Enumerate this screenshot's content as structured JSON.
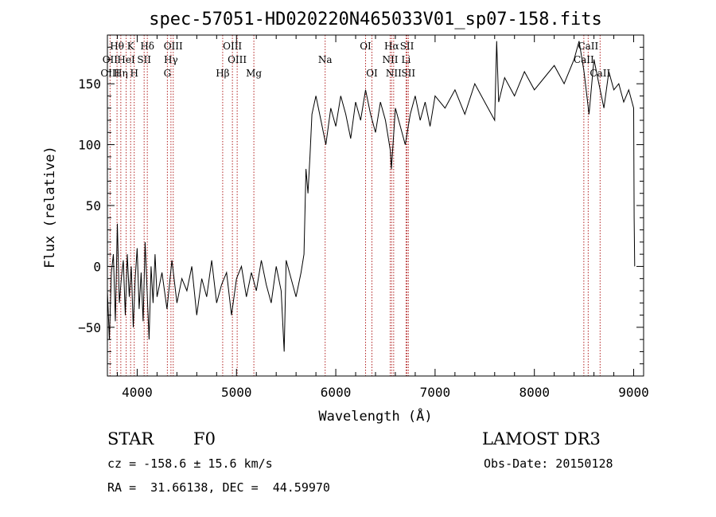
{
  "chart_data": {
    "type": "line",
    "title": "spec-57051-HD020220N465033V01_sp07-158.fits",
    "xlabel": "Wavelength (Å)",
    "ylabel": "Flux (relative)",
    "xlim": [
      3700,
      9100
    ],
    "ylim": [
      -90,
      190
    ],
    "xticks": [
      4000,
      5000,
      6000,
      7000,
      8000,
      9000
    ],
    "yticks": [
      -50,
      0,
      50,
      100,
      150
    ],
    "series": [
      {
        "name": "flux",
        "points": [
          [
            3700,
            -20
          ],
          [
            3720,
            -60
          ],
          [
            3740,
            -5
          ],
          [
            3760,
            10
          ],
          [
            3780,
            -45
          ],
          [
            3800,
            35
          ],
          [
            3820,
            -30
          ],
          [
            3840,
            -10
          ],
          [
            3860,
            5
          ],
          [
            3880,
            -40
          ],
          [
            3900,
            10
          ],
          [
            3920,
            -25
          ],
          [
            3940,
            0
          ],
          [
            3960,
            -50
          ],
          [
            3980,
            -10
          ],
          [
            4000,
            15
          ],
          [
            4020,
            -35
          ],
          [
            4040,
            -5
          ],
          [
            4060,
            -45
          ],
          [
            4080,
            20
          ],
          [
            4100,
            -20
          ],
          [
            4120,
            -60
          ],
          [
            4140,
            0
          ],
          [
            4160,
            -30
          ],
          [
            4180,
            10
          ],
          [
            4200,
            -25
          ],
          [
            4250,
            -5
          ],
          [
            4300,
            -35
          ],
          [
            4350,
            5
          ],
          [
            4400,
            -30
          ],
          [
            4450,
            -10
          ],
          [
            4500,
            -20
          ],
          [
            4550,
            0
          ],
          [
            4600,
            -40
          ],
          [
            4650,
            -10
          ],
          [
            4700,
            -25
          ],
          [
            4750,
            5
          ],
          [
            4800,
            -30
          ],
          [
            4850,
            -15
          ],
          [
            4900,
            -5
          ],
          [
            4950,
            -40
          ],
          [
            5000,
            -10
          ],
          [
            5050,
            0
          ],
          [
            5100,
            -25
          ],
          [
            5150,
            -5
          ],
          [
            5200,
            -20
          ],
          [
            5250,
            5
          ],
          [
            5300,
            -15
          ],
          [
            5350,
            -30
          ],
          [
            5400,
            0
          ],
          [
            5450,
            -20
          ],
          [
            5480,
            -70
          ],
          [
            5500,
            5
          ],
          [
            5550,
            -10
          ],
          [
            5600,
            -25
          ],
          [
            5650,
            -5
          ],
          [
            5680,
            10
          ],
          [
            5700,
            80
          ],
          [
            5720,
            60
          ],
          [
            5740,
            90
          ],
          [
            5760,
            125
          ],
          [
            5800,
            140
          ],
          [
            5850,
            120
          ],
          [
            5900,
            100
          ],
          [
            5950,
            130
          ],
          [
            6000,
            115
          ],
          [
            6050,
            140
          ],
          [
            6100,
            125
          ],
          [
            6150,
            105
          ],
          [
            6200,
            135
          ],
          [
            6250,
            120
          ],
          [
            6300,
            145
          ],
          [
            6350,
            125
          ],
          [
            6400,
            110
          ],
          [
            6450,
            135
          ],
          [
            6500,
            120
          ],
          [
            6550,
            95
          ],
          [
            6560,
            80
          ],
          [
            6600,
            130
          ],
          [
            6650,
            115
          ],
          [
            6700,
            100
          ],
          [
            6750,
            125
          ],
          [
            6800,
            140
          ],
          [
            6850,
            120
          ],
          [
            6900,
            135
          ],
          [
            6950,
            115
          ],
          [
            7000,
            140
          ],
          [
            7100,
            130
          ],
          [
            7200,
            145
          ],
          [
            7300,
            125
          ],
          [
            7400,
            150
          ],
          [
            7500,
            135
          ],
          [
            7600,
            120
          ],
          [
            7620,
            185
          ],
          [
            7640,
            135
          ],
          [
            7700,
            155
          ],
          [
            7800,
            140
          ],
          [
            7900,
            160
          ],
          [
            8000,
            145
          ],
          [
            8100,
            155
          ],
          [
            8200,
            165
          ],
          [
            8300,
            150
          ],
          [
            8400,
            170
          ],
          [
            8450,
            185
          ],
          [
            8500,
            160
          ],
          [
            8550,
            125
          ],
          [
            8600,
            170
          ],
          [
            8650,
            150
          ],
          [
            8700,
            130
          ],
          [
            8750,
            160
          ],
          [
            8800,
            145
          ],
          [
            8850,
            150
          ],
          [
            8900,
            135
          ],
          [
            8950,
            145
          ],
          [
            9000,
            130
          ],
          [
            9005,
            40
          ],
          [
            9010,
            0
          ]
        ]
      }
    ],
    "annotations": [
      {
        "label": "Hθ",
        "x": 3797,
        "row": 1
      },
      {
        "label": "K",
        "x": 3934,
        "row": 1
      },
      {
        "label": "Hδ",
        "x": 4102,
        "row": 1
      },
      {
        "label": "OIII",
        "x": 4363,
        "row": 1
      },
      {
        "label": "OIII",
        "x": 4959,
        "row": 1
      },
      {
        "label": "OI",
        "x": 6300,
        "row": 1
      },
      {
        "label": "Hα",
        "x": 6563,
        "row": 1
      },
      {
        "label": "SII",
        "x": 6717,
        "row": 1
      },
      {
        "label": "CaII",
        "x": 8542,
        "row": 1
      },
      {
        "label": "OII",
        "x": 3727,
        "row": 2
      },
      {
        "label": "HeI",
        "x": 3889,
        "row": 2
      },
      {
        "label": "SII",
        "x": 4070,
        "row": 2
      },
      {
        "label": "Hγ",
        "x": 4340,
        "row": 2
      },
      {
        "label": "OIII",
        "x": 5007,
        "row": 2
      },
      {
        "label": "Na",
        "x": 5893,
        "row": 2
      },
      {
        "label": "NII",
        "x": 6548,
        "row": 2
      },
      {
        "label": "Li",
        "x": 6708,
        "row": 2
      },
      {
        "label": "CaII",
        "x": 8498,
        "row": 2
      },
      {
        "label": "OIII",
        "x": 3727,
        "row": 3
      },
      {
        "label": "Hη",
        "x": 3835,
        "row": 3
      },
      {
        "label": "H",
        "x": 3970,
        "row": 3
      },
      {
        "label": "G",
        "x": 4304,
        "row": 3
      },
      {
        "label": "Hβ",
        "x": 4861,
        "row": 3
      },
      {
        "label": "Mg",
        "x": 5175,
        "row": 3
      },
      {
        "label": "OI",
        "x": 6364,
        "row": 3
      },
      {
        "label": "NII",
        "x": 6583,
        "row": 3
      },
      {
        "label": "SII",
        "x": 6731,
        "row": 3
      },
      {
        "label": "CaII",
        "x": 8662,
        "row": 3
      }
    ],
    "line_marks": [
      3727,
      3797,
      3835,
      3889,
      3934,
      3970,
      4070,
      4102,
      4304,
      4340,
      4363,
      4861,
      4959,
      5007,
      5175,
      5893,
      6300,
      6364,
      6548,
      6563,
      6583,
      6708,
      6717,
      6731,
      8498,
      8542,
      8662
    ]
  },
  "info": {
    "type_label": "STAR",
    "subclass": "F0",
    "survey": "LAMOST DR3",
    "cz": "cz = -158.6 ± 15.6 km/s",
    "obs_date": "Obs-Date: 20150128",
    "coords": "RA =  31.66138, DEC =  44.59970"
  },
  "colors": {
    "line": "#000000",
    "marker": "#b22222"
  }
}
